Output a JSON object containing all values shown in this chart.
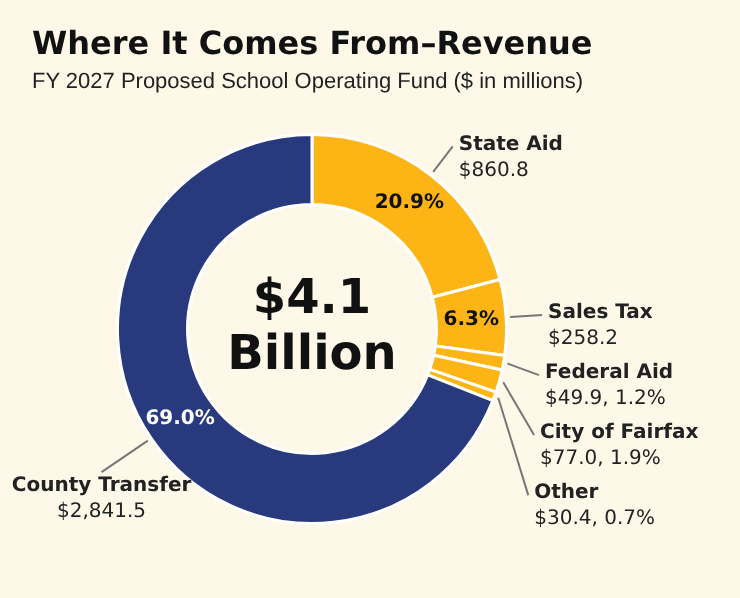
{
  "chart_data": {
    "type": "donut",
    "title": "Where It Comes From–Revenue",
    "subtitle": "FY 2027 Proposed School Operating Fund ($ in millions)",
    "categories": [
      "State Aid",
      "Sales Tax",
      "Federal Aid",
      "City of Fairfax",
      "Other",
      "County Transfer"
    ],
    "values": [
      860.8,
      258.2,
      49.9,
      77.0,
      30.4,
      2841.5
    ],
    "colors": [
      "#fdb515",
      "#fdb515",
      "#fdb515",
      "#fdb515",
      "#fdb515",
      "#283a7d"
    ],
    "value_labels": [
      "$860.8",
      "$258.2",
      "$49.9, 1.2%",
      "$77.0, 1.9%",
      "$30.4, 0.7%",
      "$2,841.5"
    ],
    "annotations": [
      {
        "text": "20.9%",
        "x": "State Aid"
      },
      {
        "text": "6.3%",
        "x": "Sales Tax"
      },
      {
        "text": "69.0%",
        "x": "County Transfer"
      },
      "$4.1 Billion"
    ],
    "legend": false
  }
}
